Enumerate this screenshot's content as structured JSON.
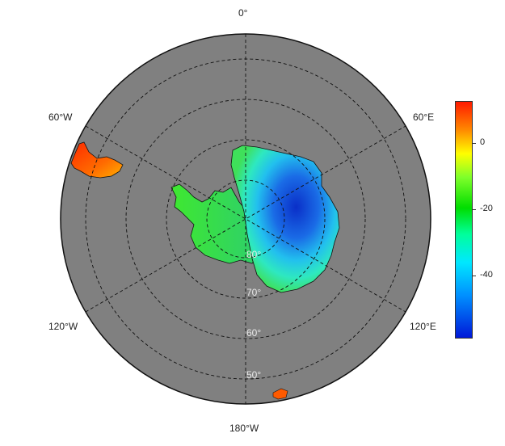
{
  "map": {
    "projection": "south-polar-stereographic",
    "lon_labels": {
      "top": "0°",
      "upper_left": "60°W",
      "upper_right": "60°E",
      "lower_left": "120°W",
      "lower_right": "120°E",
      "bottom": "180°W"
    },
    "lat_labels": [
      "80°",
      "70°",
      "60°",
      "50°"
    ],
    "ocean_color": "#808080",
    "grid": "dashed"
  },
  "colorbar": {
    "colormap": "jet",
    "ticks": [
      "0",
      "-20",
      "-40"
    ],
    "range": [
      -60,
      13
    ]
  }
}
